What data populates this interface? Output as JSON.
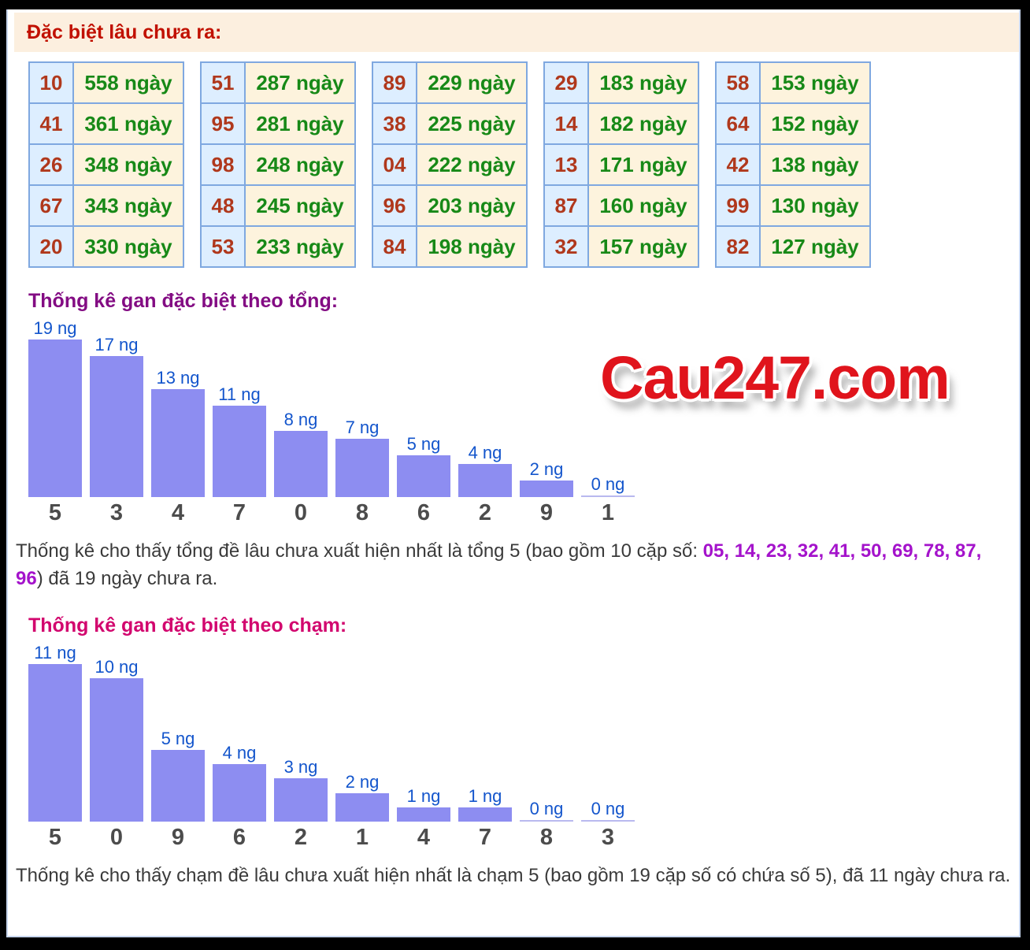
{
  "header": {
    "title": "Đặc biệt lâu chưa ra:"
  },
  "tables": [
    {
      "rows": [
        {
          "number": "10",
          "days": "558 ngày"
        },
        {
          "number": "41",
          "days": "361 ngày"
        },
        {
          "number": "26",
          "days": "348 ngày"
        },
        {
          "number": "67",
          "days": "343 ngày"
        },
        {
          "number": "20",
          "days": "330 ngày"
        }
      ]
    },
    {
      "rows": [
        {
          "number": "51",
          "days": "287 ngày"
        },
        {
          "number": "95",
          "days": "281 ngày"
        },
        {
          "number": "98",
          "days": "248 ngày"
        },
        {
          "number": "48",
          "days": "245 ngày"
        },
        {
          "number": "53",
          "days": "233 ngày"
        }
      ]
    },
    {
      "rows": [
        {
          "number": "89",
          "days": "229 ngày"
        },
        {
          "number": "38",
          "days": "225 ngày"
        },
        {
          "number": "04",
          "days": "222 ngày"
        },
        {
          "number": "96",
          "days": "203 ngày"
        },
        {
          "number": "84",
          "days": "198 ngày"
        }
      ]
    },
    {
      "rows": [
        {
          "number": "29",
          "days": "183 ngày"
        },
        {
          "number": "14",
          "days": "182 ngày"
        },
        {
          "number": "13",
          "days": "171 ngày"
        },
        {
          "number": "87",
          "days": "160 ngày"
        },
        {
          "number": "32",
          "days": "157 ngày"
        }
      ]
    },
    {
      "rows": [
        {
          "number": "58",
          "days": "153 ngày"
        },
        {
          "number": "64",
          "days": "152 ngày"
        },
        {
          "number": "42",
          "days": "138 ngày"
        },
        {
          "number": "99",
          "days": "130 ngày"
        },
        {
          "number": "82",
          "days": "127 ngày"
        }
      ]
    }
  ],
  "section_tong": {
    "title": "Thống kê gan đặc biệt theo tổng:",
    "note_prefix": "Thống kê cho thấy tổng đề lâu chưa xuất hiện nhất là tổng 5 (bao gồm 10 cặp số: ",
    "note_numbers": "05, 14, 23, 32, 41, 50, 69, 78, 87, 96",
    "note_suffix": ") đã 19 ngày chưa ra."
  },
  "section_cham": {
    "title": "Thống kê gan đặc biệt theo chạm:",
    "note": "Thống kê cho thấy chạm đề lâu chưa xuất hiện nhất là chạm 5 (bao gồm 19 cặp số có chứa số 5), đã 11 ngày chưa ra."
  },
  "watermark": "Cau247.com",
  "colors": {
    "header_red": "#c11000",
    "number_red": "#b0381c",
    "days_green": "#178917",
    "table_border_blue": "#7fa8e0",
    "bar_fill": "#8d8df1",
    "bar_label_blue": "#1355cc",
    "title_tong_purple": "#830c83",
    "title_cham_pink": "#d2066e",
    "highlight_purple": "#a413cb",
    "logo_red": "#e0141c",
    "band_peach": "#fcefdf"
  },
  "chart_data": [
    {
      "type": "bar",
      "title": "Thống kê gan đặc biệt theo tổng",
      "categories": [
        "5",
        "3",
        "4",
        "7",
        "0",
        "8",
        "6",
        "2",
        "9",
        "1"
      ],
      "values": [
        19,
        17,
        13,
        11,
        8,
        7,
        5,
        4,
        2,
        0
      ],
      "bar_labels": [
        "19 ng",
        "17 ng",
        "13 ng",
        "11 ng",
        "8 ng",
        "7 ng",
        "5 ng",
        "4 ng",
        "2 ng",
        "0 ng"
      ],
      "xlabel": "",
      "ylabel": "",
      "ylim": [
        0,
        19
      ],
      "grid": false,
      "legend": false
    },
    {
      "type": "bar",
      "title": "Thống kê gan đặc biệt theo chạm",
      "categories": [
        "5",
        "0",
        "9",
        "6",
        "2",
        "1",
        "4",
        "7",
        "8",
        "3"
      ],
      "values": [
        11,
        10,
        5,
        4,
        3,
        2,
        1,
        1,
        0,
        0
      ],
      "bar_labels": [
        "11 ng",
        "10 ng",
        "5 ng",
        "4 ng",
        "3 ng",
        "2 ng",
        "1 ng",
        "1 ng",
        "0 ng",
        "0 ng"
      ],
      "xlabel": "",
      "ylabel": "",
      "ylim": [
        0,
        11
      ],
      "grid": false,
      "legend": false
    }
  ]
}
